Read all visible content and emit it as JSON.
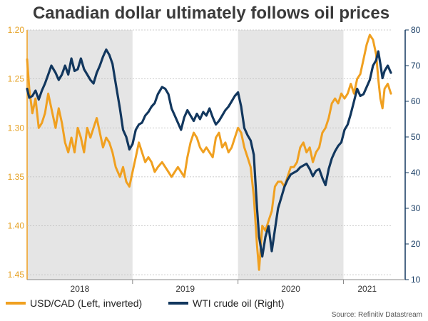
{
  "chart_data": {
    "type": "line",
    "title": "Canadian dollar ultimately follows oil prices",
    "source": "Source: Refinitiv Datastream",
    "x_categories": [
      "2018",
      "2019",
      "2020",
      "2021"
    ],
    "x_range": [
      2018.0,
      2021.45
    ],
    "shaded_years": [
      "2018",
      "2020"
    ],
    "left_axis": {
      "label": "USD/CAD (Left, inverted)",
      "inverted": true,
      "range": [
        1.2,
        1.455
      ],
      "ticks": [
        "1.20",
        "1.25",
        "1.30",
        "1.35",
        "1.40",
        "1.45"
      ],
      "color": "#f0a020"
    },
    "right_axis": {
      "label": "WTI crude oil (Right)",
      "range": [
        10,
        80
      ],
      "ticks": [
        "10",
        "20",
        "30",
        "40",
        "50",
        "60",
        "70",
        "80"
      ],
      "color": "#12375e"
    },
    "series": [
      {
        "name": "USD/CAD (Left, inverted)",
        "axis": "left",
        "color": "#f0a020",
        "points": [
          [
            2018.0,
            1.23
          ],
          [
            2018.02,
            1.26
          ],
          [
            2018.05,
            1.285
          ],
          [
            2018.08,
            1.27
          ],
          [
            2018.11,
            1.3
          ],
          [
            2018.14,
            1.295
          ],
          [
            2018.17,
            1.285
          ],
          [
            2018.2,
            1.265
          ],
          [
            2018.23,
            1.28
          ],
          [
            2018.27,
            1.3
          ],
          [
            2018.3,
            1.28
          ],
          [
            2018.33,
            1.295
          ],
          [
            2018.36,
            1.315
          ],
          [
            2018.39,
            1.325
          ],
          [
            2018.42,
            1.31
          ],
          [
            2018.45,
            1.325
          ],
          [
            2018.48,
            1.3
          ],
          [
            2018.51,
            1.31
          ],
          [
            2018.54,
            1.325
          ],
          [
            2018.57,
            1.3
          ],
          [
            2018.6,
            1.31
          ],
          [
            2018.63,
            1.3
          ],
          [
            2018.66,
            1.29
          ],
          [
            2018.69,
            1.305
          ],
          [
            2018.72,
            1.32
          ],
          [
            2018.75,
            1.31
          ],
          [
            2018.78,
            1.315
          ],
          [
            2018.81,
            1.325
          ],
          [
            2018.84,
            1.34
          ],
          [
            2018.88,
            1.35
          ],
          [
            2018.91,
            1.34
          ],
          [
            2018.94,
            1.355
          ],
          [
            2018.97,
            1.36
          ],
          [
            2019.0,
            1.345
          ],
          [
            2019.03,
            1.33
          ],
          [
            2019.06,
            1.315
          ],
          [
            2019.09,
            1.325
          ],
          [
            2019.12,
            1.335
          ],
          [
            2019.15,
            1.33
          ],
          [
            2019.18,
            1.335
          ],
          [
            2019.21,
            1.345
          ],
          [
            2019.24,
            1.34
          ],
          [
            2019.28,
            1.335
          ],
          [
            2019.31,
            1.34
          ],
          [
            2019.34,
            1.345
          ],
          [
            2019.37,
            1.35
          ],
          [
            2019.4,
            1.345
          ],
          [
            2019.43,
            1.34
          ],
          [
            2019.46,
            1.345
          ],
          [
            2019.49,
            1.35
          ],
          [
            2019.52,
            1.33
          ],
          [
            2019.55,
            1.315
          ],
          [
            2019.58,
            1.305
          ],
          [
            2019.61,
            1.31
          ],
          [
            2019.64,
            1.32
          ],
          [
            2019.67,
            1.325
          ],
          [
            2019.7,
            1.32
          ],
          [
            2019.73,
            1.325
          ],
          [
            2019.76,
            1.33
          ],
          [
            2019.79,
            1.31
          ],
          [
            2019.82,
            1.305
          ],
          [
            2019.85,
            1.32
          ],
          [
            2019.88,
            1.315
          ],
          [
            2019.91,
            1.325
          ],
          [
            2019.94,
            1.32
          ],
          [
            2019.97,
            1.31
          ],
          [
            2020.0,
            1.3
          ],
          [
            2020.03,
            1.305
          ],
          [
            2020.06,
            1.32
          ],
          [
            2020.09,
            1.33
          ],
          [
            2020.12,
            1.34
          ],
          [
            2020.15,
            1.37
          ],
          [
            2020.18,
            1.42
          ],
          [
            2020.2,
            1.445
          ],
          [
            2020.23,
            1.4
          ],
          [
            2020.26,
            1.405
          ],
          [
            2020.29,
            1.395
          ],
          [
            2020.32,
            1.385
          ],
          [
            2020.35,
            1.36
          ],
          [
            2020.38,
            1.355
          ],
          [
            2020.41,
            1.355
          ],
          [
            2020.44,
            1.36
          ],
          [
            2020.47,
            1.35
          ],
          [
            2020.5,
            1.34
          ],
          [
            2020.53,
            1.34
          ],
          [
            2020.56,
            1.335
          ],
          [
            2020.59,
            1.32
          ],
          [
            2020.62,
            1.315
          ],
          [
            2020.65,
            1.325
          ],
          [
            2020.68,
            1.32
          ],
          [
            2020.71,
            1.335
          ],
          [
            2020.74,
            1.325
          ],
          [
            2020.77,
            1.32
          ],
          [
            2020.8,
            1.305
          ],
          [
            2020.83,
            1.3
          ],
          [
            2020.86,
            1.29
          ],
          [
            2020.89,
            1.275
          ],
          [
            2020.92,
            1.27
          ],
          [
            2020.95,
            1.275
          ],
          [
            2020.98,
            1.265
          ],
          [
            2021.01,
            1.27
          ],
          [
            2021.04,
            1.265
          ],
          [
            2021.07,
            1.255
          ],
          [
            2021.1,
            1.265
          ],
          [
            2021.13,
            1.25
          ],
          [
            2021.16,
            1.245
          ],
          [
            2021.19,
            1.23
          ],
          [
            2021.22,
            1.215
          ],
          [
            2021.25,
            1.205
          ],
          [
            2021.28,
            1.21
          ],
          [
            2021.31,
            1.225
          ],
          [
            2021.33,
            1.25
          ],
          [
            2021.35,
            1.27
          ],
          [
            2021.37,
            1.28
          ],
          [
            2021.39,
            1.26
          ],
          [
            2021.42,
            1.255
          ],
          [
            2021.45,
            1.265
          ]
        ]
      },
      {
        "name": "WTI crude oil (Right)",
        "axis": "right",
        "color": "#12375e",
        "points": [
          [
            2018.0,
            63.5
          ],
          [
            2018.02,
            61.0
          ],
          [
            2018.05,
            61.5
          ],
          [
            2018.08,
            63.0
          ],
          [
            2018.11,
            60.5
          ],
          [
            2018.14,
            63.0
          ],
          [
            2018.17,
            65.0
          ],
          [
            2018.2,
            67.5
          ],
          [
            2018.23,
            70.0
          ],
          [
            2018.27,
            68.0
          ],
          [
            2018.3,
            66.0
          ],
          [
            2018.33,
            67.5
          ],
          [
            2018.36,
            70.0
          ],
          [
            2018.39,
            67.5
          ],
          [
            2018.42,
            72.0
          ],
          [
            2018.45,
            68.5
          ],
          [
            2018.48,
            69.0
          ],
          [
            2018.51,
            72.0
          ],
          [
            2018.54,
            69.0
          ],
          [
            2018.57,
            67.5
          ],
          [
            2018.6,
            66.0
          ],
          [
            2018.63,
            65.0
          ],
          [
            2018.66,
            68.0
          ],
          [
            2018.69,
            70.0
          ],
          [
            2018.72,
            72.5
          ],
          [
            2018.75,
            74.5
          ],
          [
            2018.78,
            73.0
          ],
          [
            2018.81,
            70.5
          ],
          [
            2018.84,
            65.0
          ],
          [
            2018.88,
            58.0
          ],
          [
            2018.91,
            52.0
          ],
          [
            2018.94,
            50.0
          ],
          [
            2018.97,
            46.5
          ],
          [
            2019.0,
            48.0
          ],
          [
            2019.03,
            52.0
          ],
          [
            2019.06,
            53.5
          ],
          [
            2019.09,
            54.0
          ],
          [
            2019.12,
            56.0
          ],
          [
            2019.15,
            57.0
          ],
          [
            2019.18,
            58.5
          ],
          [
            2019.21,
            59.5
          ],
          [
            2019.24,
            62.0
          ],
          [
            2019.28,
            64.0
          ],
          [
            2019.31,
            63.5
          ],
          [
            2019.34,
            62.0
          ],
          [
            2019.37,
            58.0
          ],
          [
            2019.4,
            56.0
          ],
          [
            2019.43,
            54.0
          ],
          [
            2019.46,
            52.0
          ],
          [
            2019.49,
            55.5
          ],
          [
            2019.52,
            57.5
          ],
          [
            2019.55,
            56.0
          ],
          [
            2019.58,
            54.5
          ],
          [
            2019.61,
            56.5
          ],
          [
            2019.64,
            55.0
          ],
          [
            2019.67,
            57.0
          ],
          [
            2019.7,
            56.0
          ],
          [
            2019.73,
            58.0
          ],
          [
            2019.76,
            55.5
          ],
          [
            2019.79,
            53.5
          ],
          [
            2019.82,
            54.5
          ],
          [
            2019.85,
            56.0
          ],
          [
            2019.88,
            57.5
          ],
          [
            2019.91,
            58.5
          ],
          [
            2019.94,
            60.0
          ],
          [
            2019.97,
            61.5
          ],
          [
            2020.0,
            62.5
          ],
          [
            2020.03,
            58.5
          ],
          [
            2020.06,
            52.5
          ],
          [
            2020.09,
            50.5
          ],
          [
            2020.12,
            49.0
          ],
          [
            2020.15,
            45.0
          ],
          [
            2020.18,
            30.0
          ],
          [
            2020.2,
            22.0
          ],
          [
            2020.23,
            16.5
          ],
          [
            2020.26,
            22.0
          ],
          [
            2020.29,
            25.0
          ],
          [
            2020.32,
            18.0
          ],
          [
            2020.35,
            24.0
          ],
          [
            2020.38,
            30.0
          ],
          [
            2020.41,
            33.0
          ],
          [
            2020.44,
            36.0
          ],
          [
            2020.47,
            38.0
          ],
          [
            2020.5,
            39.5
          ],
          [
            2020.53,
            40.0
          ],
          [
            2020.56,
            40.5
          ],
          [
            2020.59,
            41.5
          ],
          [
            2020.62,
            42.0
          ],
          [
            2020.65,
            42.5
          ],
          [
            2020.68,
            41.0
          ],
          [
            2020.71,
            39.0
          ],
          [
            2020.74,
            40.5
          ],
          [
            2020.77,
            41.0
          ],
          [
            2020.8,
            38.5
          ],
          [
            2020.83,
            36.5
          ],
          [
            2020.86,
            41.0
          ],
          [
            2020.89,
            44.0
          ],
          [
            2020.92,
            46.0
          ],
          [
            2020.95,
            47.5
          ],
          [
            2020.98,
            48.5
          ],
          [
            2021.01,
            52.0
          ],
          [
            2021.04,
            53.5
          ],
          [
            2021.07,
            56.5
          ],
          [
            2021.1,
            60.0
          ],
          [
            2021.13,
            63.5
          ],
          [
            2021.16,
            61.5
          ],
          [
            2021.19,
            62.0
          ],
          [
            2021.22,
            64.0
          ],
          [
            2021.25,
            66.0
          ],
          [
            2021.28,
            70.0
          ],
          [
            2021.31,
            71.5
          ],
          [
            2021.33,
            74.0
          ],
          [
            2021.35,
            70.5
          ],
          [
            2021.37,
            66.5
          ],
          [
            2021.39,
            68.5
          ],
          [
            2021.42,
            70.0
          ],
          [
            2021.45,
            68.0
          ]
        ]
      }
    ]
  }
}
